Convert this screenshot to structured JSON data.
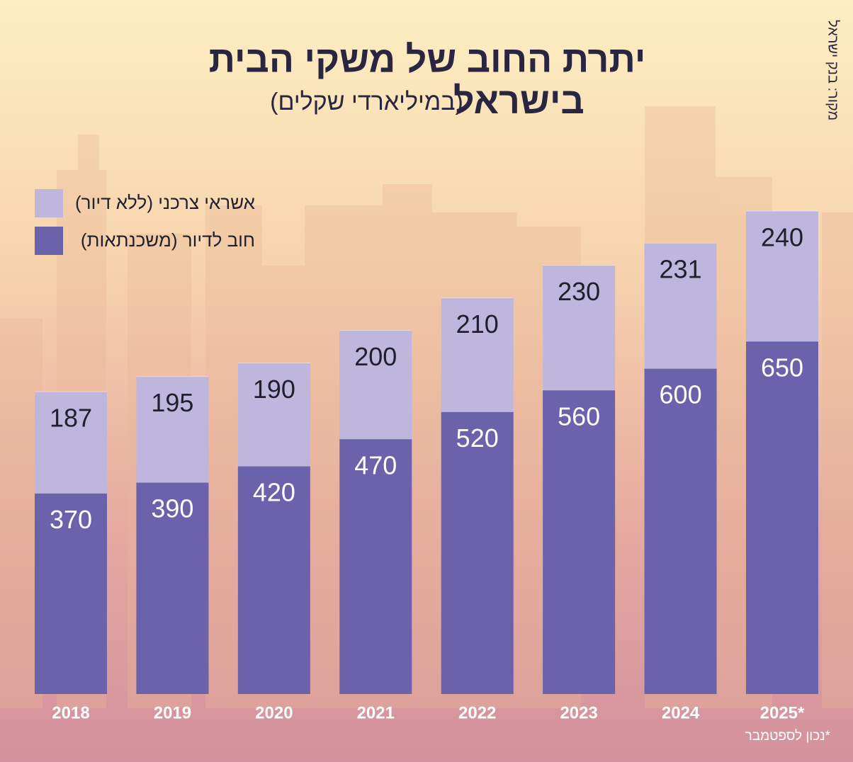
{
  "chart_data": {
    "type": "stacked-bar",
    "title": [
      "יתרת החוב של משקי הבית",
      "בישראל"
    ],
    "subtitle": "(במיליארדי שקלים)",
    "source": "מקור: בנק ישראל",
    "footnote": "*נכון לספטמבר",
    "categories": [
      "2018",
      "2019",
      "2020",
      "2021",
      "2022",
      "2023",
      "2024",
      "2025*"
    ],
    "series": [
      {
        "name": "חוב לדיור (משכנתאות)",
        "color": "#6a62aa",
        "values": [
          370,
          390,
          420,
          470,
          520,
          560,
          600,
          650
        ]
      },
      {
        "name": "אשראי צרכני (ללא דיור)",
        "color": "#bfb6de",
        "values": [
          187,
          195,
          190,
          200,
          210,
          230,
          231,
          240
        ]
      }
    ]
  }
}
